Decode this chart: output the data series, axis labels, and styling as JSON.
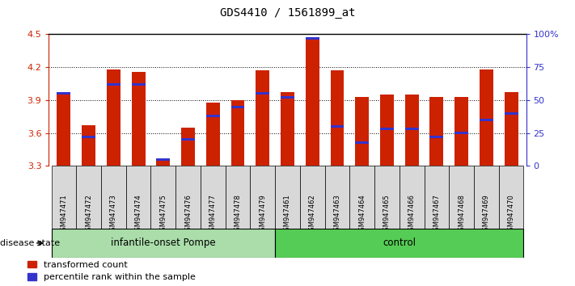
{
  "title": "GDS4410 / 1561899_at",
  "samples": [
    "GSM947471",
    "GSM947472",
    "GSM947473",
    "GSM947474",
    "GSM947475",
    "GSM947476",
    "GSM947477",
    "GSM947478",
    "GSM947479",
    "GSM947461",
    "GSM947462",
    "GSM947463",
    "GSM947464",
    "GSM947465",
    "GSM947466",
    "GSM947467",
    "GSM947468",
    "GSM947469",
    "GSM947470"
  ],
  "transformed_count": [
    3.97,
    3.67,
    4.18,
    4.16,
    3.37,
    3.65,
    3.88,
    3.9,
    4.17,
    3.97,
    4.47,
    4.17,
    3.93,
    3.95,
    3.95,
    3.93,
    3.93,
    4.18,
    3.97
  ],
  "percentile_pct": [
    55,
    22,
    62,
    62,
    5,
    20,
    38,
    45,
    55,
    52,
    97,
    30,
    18,
    28,
    28,
    22,
    25,
    35,
    40
  ],
  "groups": [
    {
      "label": "infantile-onset Pompe",
      "start": 0,
      "end": 9,
      "color": "#aaddaa"
    },
    {
      "label": "control",
      "start": 9,
      "end": 19,
      "color": "#55cc55"
    }
  ],
  "ylim": [
    3.3,
    4.5
  ],
  "yticks": [
    3.3,
    3.6,
    3.9,
    4.2,
    4.5
  ],
  "right_yticks": [
    0,
    25,
    50,
    75,
    100
  ],
  "bar_color": "#cc2200",
  "blue_color": "#3333cc",
  "bar_width": 0.55
}
